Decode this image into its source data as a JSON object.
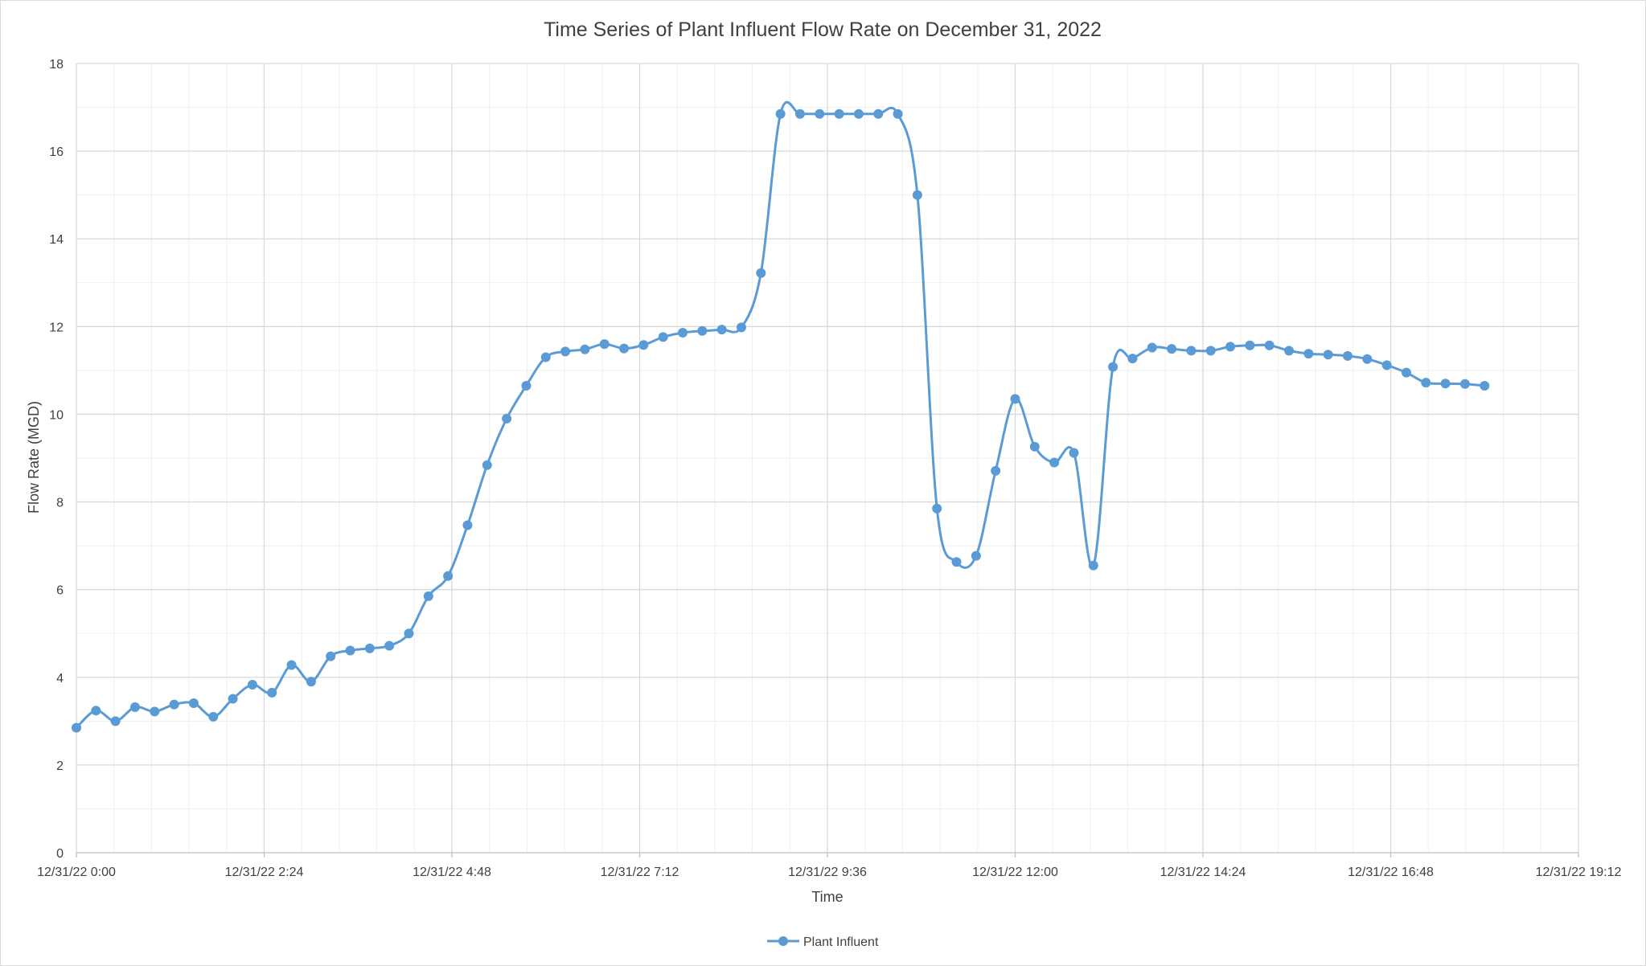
{
  "chart_data": {
    "type": "line",
    "title": "Time Series of Plant Influent Flow Rate on December 31, 2022",
    "xlabel": "Time",
    "ylabel": "Flow Rate (MGD)",
    "ylim": [
      0,
      18
    ],
    "yticks": [
      "0",
      "2",
      "4",
      "6",
      "8",
      "10",
      "12",
      "14",
      "16",
      "18"
    ],
    "xlim": [
      "12/31/22 0:00",
      "12/31/22 19:12"
    ],
    "xticks": [
      "12/31/22 0:00",
      "12/31/22 2:24",
      "12/31/22 4:48",
      "12/31/22 7:12",
      "12/31/22 9:36",
      "12/31/22 12:00",
      "12/31/22 14:24",
      "12/31/22 16:48",
      "12/31/22 19:12"
    ],
    "grid": true,
    "legend_position": "bottom",
    "smoothed": true,
    "color": "#5b9bd5",
    "series": [
      {
        "name": "Plant Influent",
        "x": [
          "12/31/22 0:00",
          "12/31/22 0:15",
          "12/31/22 0:30",
          "12/31/22 0:45",
          "12/31/22 1:00",
          "12/31/22 1:15",
          "12/31/22 1:30",
          "12/31/22 1:45",
          "12/31/22 2:00",
          "12/31/22 2:15",
          "12/31/22 2:30",
          "12/31/22 2:45",
          "12/31/22 3:00",
          "12/31/22 3:15",
          "12/31/22 3:30",
          "12/31/22 3:45",
          "12/31/22 4:00",
          "12/31/22 4:15",
          "12/31/22 4:30",
          "12/31/22 4:45",
          "12/31/22 5:00",
          "12/31/22 5:15",
          "12/31/22 5:30",
          "12/31/22 5:45",
          "12/31/22 6:00",
          "12/31/22 6:15",
          "12/31/22 6:30",
          "12/31/22 6:45",
          "12/31/22 7:00",
          "12/31/22 7:15",
          "12/31/22 7:30",
          "12/31/22 7:45",
          "12/31/22 8:00",
          "12/31/22 8:15",
          "12/31/22 8:30",
          "12/31/22 8:45",
          "12/31/22 9:00",
          "12/31/22 9:15",
          "12/31/22 9:30",
          "12/31/22 9:45",
          "12/31/22 10:00",
          "12/31/22 10:15",
          "12/31/22 10:30",
          "12/31/22 10:45",
          "12/31/22 11:00",
          "12/31/22 11:15",
          "12/31/22 11:30",
          "12/31/22 11:45",
          "12/31/22 12:00",
          "12/31/22 12:15",
          "12/31/22 12:30",
          "12/31/22 12:45",
          "12/31/22 13:00",
          "12/31/22 13:15",
          "12/31/22 13:30",
          "12/31/22 13:45",
          "12/31/22 14:00",
          "12/31/22 14:15",
          "12/31/22 14:30",
          "12/31/22 14:45",
          "12/31/22 15:00",
          "12/31/22 15:15",
          "12/31/22 15:30",
          "12/31/22 15:45",
          "12/31/22 16:00",
          "12/31/22 16:15",
          "12/31/22 16:30",
          "12/31/22 16:45",
          "12/31/22 17:00",
          "12/31/22 17:15",
          "12/31/22 17:30",
          "12/31/22 17:45",
          "12/31/22 18:00"
        ],
        "values": [
          2.85,
          3.24,
          3.0,
          3.32,
          3.22,
          3.38,
          3.41,
          3.1,
          3.51,
          3.83,
          3.65,
          4.28,
          3.9,
          4.48,
          4.61,
          4.66,
          4.72,
          5.0,
          5.85,
          6.31,
          7.47,
          8.84,
          9.9,
          10.65,
          11.3,
          11.43,
          11.48,
          11.6,
          11.5,
          11.58,
          11.76,
          11.86,
          11.9,
          11.93,
          11.98,
          13.22,
          16.85,
          16.85,
          16.85,
          16.85,
          16.85,
          16.85,
          16.85,
          15.0,
          7.85,
          6.63,
          6.77,
          8.71,
          10.35,
          9.26,
          8.9,
          9.12,
          6.55,
          11.08,
          11.27,
          11.52,
          11.49,
          11.45,
          11.45,
          11.54,
          11.57,
          11.57,
          11.45,
          11.38,
          11.36,
          11.33,
          11.26,
          11.12,
          10.95,
          10.72,
          10.7,
          10.69,
          10.65
        ]
      }
    ]
  }
}
